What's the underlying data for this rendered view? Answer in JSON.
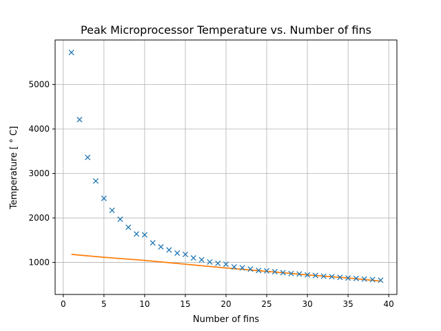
{
  "chart_data": {
    "type": "scatter",
    "title": "Peak Microprocessor Temperature vs. Number of fins",
    "xlabel": "Number of fins",
    "ylabel": "Temperature [$^\\circ$C]",
    "ylabel_display": "Temperature [ ° C]",
    "xlim": [
      -1,
      41
    ],
    "ylim": [
      280,
      6000
    ],
    "xticks": [
      0,
      5,
      10,
      15,
      20,
      25,
      30,
      35,
      40
    ],
    "yticks": [
      1000,
      2000,
      3000,
      4000,
      5000
    ],
    "grid": true,
    "series": [
      {
        "kind": "scatter",
        "marker": "x",
        "color": "#1f77b4",
        "x": [
          1,
          2,
          3,
          4,
          5,
          6,
          7,
          8,
          9,
          10,
          11,
          12,
          13,
          14,
          15,
          16,
          17,
          18,
          19,
          20,
          21,
          22,
          23,
          24,
          25,
          26,
          27,
          28,
          29,
          30,
          31,
          32,
          33,
          34,
          35,
          36,
          37,
          38,
          39
        ],
        "y": [
          5720,
          4210,
          3360,
          2830,
          2440,
          2170,
          1970,
          1790,
          1640,
          1620,
          1440,
          1350,
          1280,
          1210,
          1180,
          1100,
          1060,
          1010,
          980,
          960,
          900,
          880,
          850,
          820,
          810,
          790,
          770,
          750,
          740,
          720,
          705,
          690,
          680,
          665,
          650,
          640,
          625,
          615,
          600
        ]
      },
      {
        "kind": "line",
        "color": "#ff7f0e",
        "x": [
          1,
          5,
          10,
          15,
          20,
          25,
          30,
          35,
          39
        ],
        "y": [
          1180,
          1115,
          1045,
          960,
          875,
          800,
          720,
          650,
          580
        ]
      }
    ]
  }
}
